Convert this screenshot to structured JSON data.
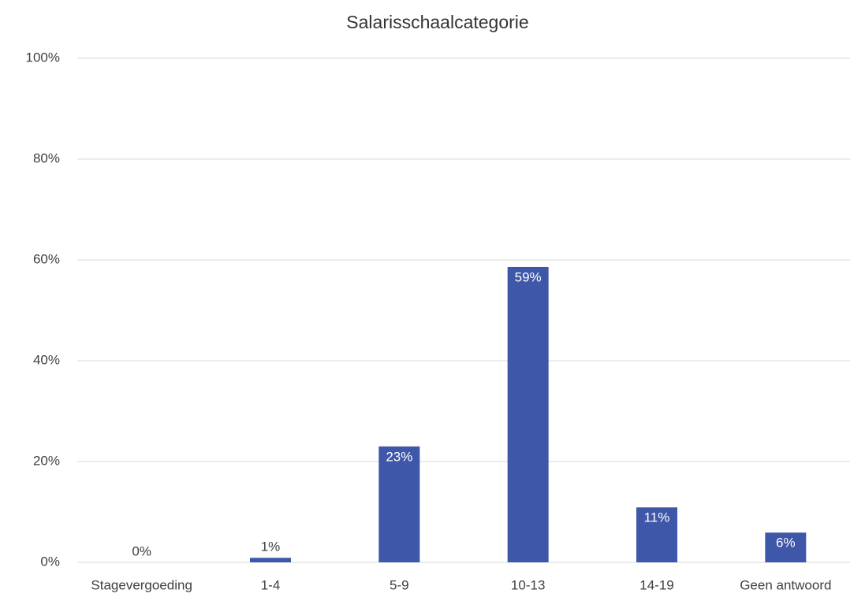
{
  "chart_data": {
    "type": "bar",
    "title": "Salarisschaalcategorie",
    "categories": [
      "Stagevergoeding",
      "1-4",
      "5-9",
      "10-13",
      "14-19",
      "Geen antwoord"
    ],
    "values": [
      0,
      0.9,
      23,
      58.6,
      10.9,
      5.9
    ],
    "value_labels": [
      "0%",
      "1%",
      "23%",
      "59%",
      "11%",
      "6%"
    ],
    "color": "#3f57a8",
    "ylim": [
      0,
      100
    ],
    "yticks": [
      {
        "value": 0,
        "label": "0%"
      },
      {
        "value": 20,
        "label": "20%"
      },
      {
        "value": 40,
        "label": "40%"
      },
      {
        "value": 60,
        "label": "60%"
      },
      {
        "value": 80,
        "label": "80%"
      },
      {
        "value": 100,
        "label": "100%"
      }
    ],
    "grid": true
  }
}
